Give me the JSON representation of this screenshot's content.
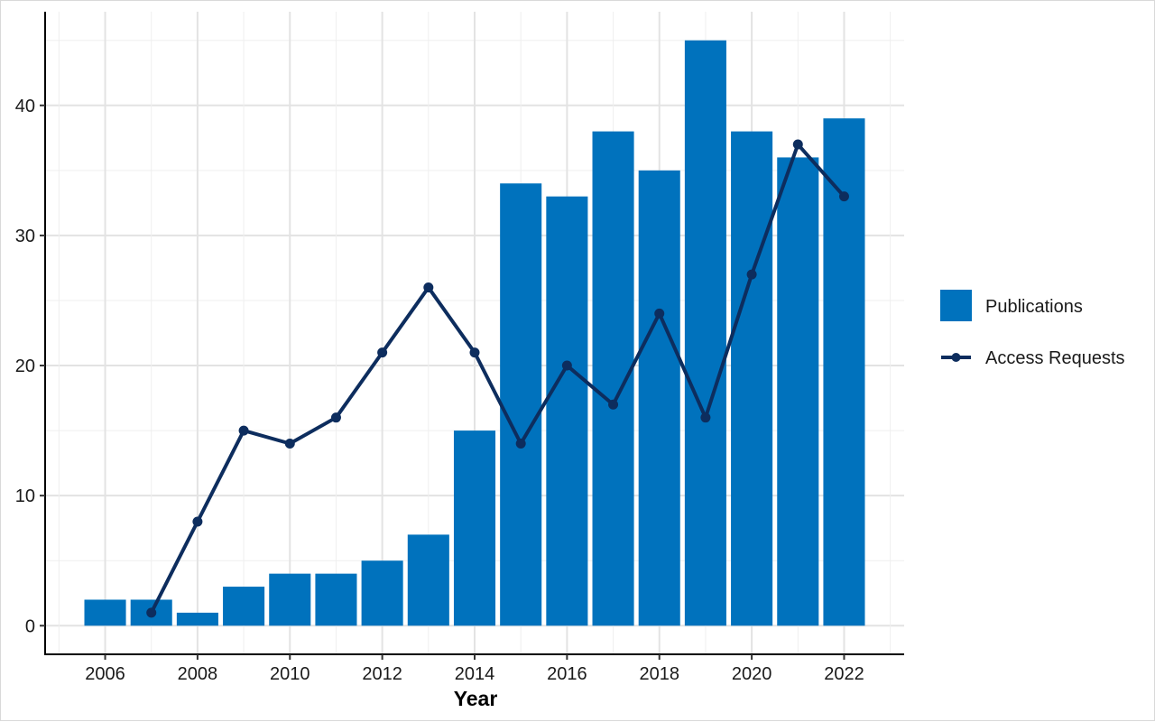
{
  "chart_data": {
    "type": "bar",
    "title": "",
    "xlabel": "Year",
    "ylabel": "",
    "categories": [
      "2006",
      "2007",
      "2008",
      "2009",
      "2010",
      "2011",
      "2012",
      "2013",
      "2014",
      "2015",
      "2016",
      "2017",
      "2018",
      "2019",
      "2020",
      "2021",
      "2022"
    ],
    "x_tick_labels": [
      "2006",
      "2008",
      "2010",
      "2012",
      "2014",
      "2016",
      "2018",
      "2020",
      "2022"
    ],
    "y_tick_labels": [
      "0",
      "10",
      "20",
      "30",
      "40"
    ],
    "ylim": [
      -2.2,
      47.2
    ],
    "xlim": [
      2004.7,
      2023.3
    ],
    "grid": true,
    "legend_position": "right",
    "series": [
      {
        "name": "Publications",
        "kind": "bar",
        "color": "#0072bd",
        "x": [
          2006,
          2007,
          2008,
          2009,
          2010,
          2011,
          2012,
          2013,
          2014,
          2015,
          2016,
          2017,
          2018,
          2019,
          2020,
          2021,
          2022
        ],
        "values": [
          2,
          2,
          1,
          3,
          4,
          4,
          5,
          7,
          15,
          34,
          33,
          38,
          35,
          45,
          38,
          36,
          39
        ]
      },
      {
        "name": "Access Requests",
        "kind": "line",
        "color": "#0d2d5e",
        "marker": "circle",
        "x": [
          2007,
          2008,
          2009,
          2010,
          2011,
          2012,
          2013,
          2014,
          2015,
          2016,
          2017,
          2018,
          2019,
          2020,
          2021,
          2022
        ],
        "values": [
          1,
          8,
          15,
          14,
          16,
          21,
          26,
          21,
          14,
          20,
          17,
          24,
          16,
          27,
          37,
          33
        ]
      }
    ]
  }
}
